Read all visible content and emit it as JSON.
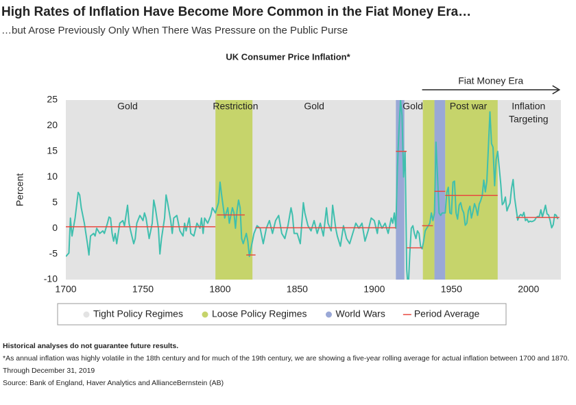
{
  "chart_data": {
    "type": "line",
    "title": "High Rates of Inflation Have Become More Common in the Fiat Money Era…",
    "subtitle": "…but Arose Previously Only When There Was Pressure on the Public Purse",
    "chart_title": "UK Consumer Price Inflation*",
    "y_label": "Percent",
    "xlim": [
      1700,
      2021
    ],
    "ylim": [
      -10,
      25
    ],
    "xticks": [
      1700,
      1750,
      1800,
      1850,
      1900,
      1950,
      2000
    ],
    "yticks": [
      -10,
      -5,
      0,
      5,
      10,
      15,
      20,
      25
    ],
    "background": "#e3e3e3",
    "x": [
      1700,
      1702,
      1703,
      1704,
      1706,
      1708,
      1709,
      1710,
      1712,
      1714,
      1715,
      1716,
      1718,
      1719,
      1720,
      1722,
      1724,
      1725,
      1727,
      1728,
      1729,
      1730,
      1731,
      1732,
      1733,
      1735,
      1737,
      1738,
      1740,
      1741,
      1742,
      1744,
      1745,
      1746,
      1748,
      1750,
      1751,
      1752,
      1754,
      1756,
      1757,
      1758,
      1760,
      1761,
      1762,
      1764,
      1765,
      1766,
      1768,
      1769,
      1770,
      1772,
      1774,
      1776,
      1777,
      1778,
      1780,
      1781,
      1783,
      1785,
      1787,
      1788,
      1789,
      1790,
      1792,
      1794,
      1795,
      1797,
      1799,
      1800,
      1801,
      1803,
      1805,
      1806,
      1808,
      1809,
      1810,
      1811,
      1812,
      1813,
      1814,
      1815,
      1817,
      1818,
      1819,
      1820,
      1822,
      1824,
      1826,
      1828,
      1830,
      1832,
      1834,
      1836,
      1838,
      1840,
      1842,
      1844,
      1846,
      1847,
      1848,
      1850,
      1852,
      1854,
      1855,
      1857,
      1859,
      1861,
      1863,
      1865,
      1867,
      1869,
      1870,
      1872,
      1873,
      1875,
      1876,
      1878,
      1880,
      1882,
      1884,
      1886,
      1888,
      1890,
      1892,
      1894,
      1896,
      1898,
      1900,
      1902,
      1903,
      1905,
      1907,
      1909,
      1911,
      1912,
      1913,
      1914,
      1915,
      1916,
      1917,
      1918,
      1919,
      1920,
      1921,
      1922,
      1923,
      1924,
      1925,
      1926,
      1927,
      1928,
      1929,
      1930,
      1931,
      1932,
      1933,
      1934,
      1935,
      1936,
      1937,
      1938,
      1939,
      1940,
      1941,
      1942,
      1943,
      1944,
      1945,
      1946,
      1947,
      1948,
      1949,
      1950,
      1951,
      1952,
      1953,
      1954,
      1955,
      1956,
      1957,
      1958,
      1959,
      1960,
      1961,
      1962,
      1963,
      1964,
      1965,
      1966,
      1967,
      1968,
      1969,
      1970,
      1971,
      1972,
      1973,
      1974,
      1975,
      1976,
      1977,
      1978,
      1979,
      1980,
      1981,
      1982,
      1983,
      1984,
      1985,
      1986,
      1987,
      1988,
      1989,
      1990,
      1991,
      1992,
      1993,
      1994,
      1995,
      1996,
      1997,
      1998,
      1999,
      2000,
      2001,
      2002,
      2003,
      2004,
      2005,
      2006,
      2007,
      2008,
      2009,
      2010,
      2011,
      2012,
      2013,
      2014,
      2015,
      2016,
      2017,
      2018,
      2019
    ],
    "series": [
      {
        "color": "#3fbfae",
        "values": [
          -5.5,
          -4.8,
          2,
          -1.5,
          2,
          7,
          6.5,
          4,
          1,
          -3,
          -5.2,
          -1.5,
          -1,
          -1.5,
          0,
          -1,
          -0.5,
          -1,
          1,
          2.2,
          2,
          -1,
          -2.5,
          -1,
          -3,
          1,
          1.5,
          0.5,
          4.5,
          1,
          -0.5,
          -3,
          -2,
          1,
          2.5,
          1.5,
          3,
          2,
          -2,
          1,
          5.5,
          4,
          0,
          -5,
          -2,
          2,
          6.5,
          5,
          1.5,
          -1,
          2,
          2.5,
          -0.5,
          -1.5,
          1,
          -0.5,
          2,
          -1,
          -1.5,
          1,
          0,
          2,
          -1,
          2,
          1,
          2.5,
          4,
          3,
          5,
          9,
          6.5,
          2,
          4,
          1,
          4,
          3,
          0,
          3.5,
          5.5,
          4,
          -2,
          -3,
          -1,
          -2.5,
          -5.5,
          -4,
          -1,
          0.5,
          0,
          -3,
          0,
          1.5,
          -1,
          1.5,
          2.5,
          -1,
          -2,
          0.5,
          4,
          2.5,
          -1,
          -1,
          -3,
          5,
          3,
          0.5,
          -0.5,
          1.5,
          -1,
          1,
          -1.5,
          4,
          1,
          -0.5,
          4.5,
          0,
          -1.5,
          -3.5,
          0.5,
          -2,
          -3,
          -1,
          1,
          0,
          1,
          -2.5,
          -0.5,
          2,
          1.5,
          -1,
          1.5,
          0,
          1,
          -1,
          2,
          1,
          3,
          0,
          12,
          19,
          25,
          22,
          10,
          15,
          -8,
          -12,
          -5,
          0,
          0.5,
          -1,
          -2,
          -0.5,
          -1,
          -3.5,
          -4,
          -2.5,
          -0.5,
          0,
          0.5,
          1,
          3,
          1.5,
          3,
          16.8,
          10,
          3,
          2.5,
          3,
          3,
          3,
          7,
          8,
          3,
          2.8,
          9,
          9.2,
          3,
          1.8,
          4.5,
          5,
          3.7,
          3,
          0.6,
          1,
          3.4,
          4.3,
          2,
          3.3,
          4.8,
          3.9,
          2.5,
          4.7,
          5.4,
          6.4,
          9.4,
          7.1,
          9.2,
          16,
          22.7,
          16.5,
          15.8,
          8.3,
          13.4,
          15,
          11.9,
          8.6,
          4.6,
          5,
          6.1,
          3.4,
          4.2,
          4.9,
          7.8,
          9.5,
          5.9,
          3.7,
          1.6,
          2.4,
          2.7,
          2.4,
          3.1,
          1.5,
          1.8,
          1.2,
          1.4,
          1.3,
          1.4,
          1.6,
          2.1,
          2.3,
          2.3,
          3.6,
          2.2,
          3.3,
          4.5,
          2.8,
          2.6,
          1.5,
          0.1,
          0.7,
          2.7,
          2.5,
          1.8
        ]
      }
    ],
    "bands": [
      {
        "from": 1797,
        "to": 1821,
        "color": "#c6d46b"
      },
      {
        "from": 1914,
        "to": 1919.5,
        "color": "#9aa8d6"
      },
      {
        "from": 1931.5,
        "to": 1939,
        "color": "#c6d46b"
      },
      {
        "from": 1939,
        "to": 1946,
        "color": "#9aa8d6"
      },
      {
        "from": 1946,
        "to": 1980,
        "color": "#c6d46b"
      }
    ],
    "period_average_color": "#e8483f",
    "period_averages": [
      {
        "from": 1700,
        "to": 1797,
        "value": 0.3
      },
      {
        "from": 1798,
        "to": 1816,
        "value": 2.6
      },
      {
        "from": 1817,
        "to": 1823,
        "value": -5.2
      },
      {
        "from": 1823,
        "to": 1914,
        "value": 0.1
      },
      {
        "from": 1914,
        "to": 1921,
        "value": 15
      },
      {
        "from": 1921,
        "to": 1931,
        "value": -3.8
      },
      {
        "from": 1931,
        "to": 1938,
        "value": 0.5
      },
      {
        "from": 1939,
        "to": 1946,
        "value": 7.2
      },
      {
        "from": 1946,
        "to": 1980,
        "value": 6.4
      },
      {
        "from": 1992,
        "to": 2020,
        "value": 2.1
      }
    ],
    "regime_labels": [
      {
        "x": 1740,
        "lines": [
          "Gold"
        ]
      },
      {
        "x": 1810,
        "lines": [
          "Restriction"
        ]
      },
      {
        "x": 1861,
        "lines": [
          "Gold"
        ]
      },
      {
        "x": 1925,
        "lines": [
          "Gold"
        ]
      },
      {
        "x": 1961,
        "lines": [
          "Post war"
        ]
      },
      {
        "x": 2000,
        "lines": [
          "Inflation",
          "Targeting"
        ]
      }
    ],
    "era_arrow": {
      "text": "Fiat Money Era",
      "from": 1931,
      "to": 2020
    },
    "legend": [
      {
        "name": "Tight Policy Regimes",
        "color": "#e3e3e3",
        "marker": "dot"
      },
      {
        "name": "Loose Policy Regimes",
        "color": "#c6d46b",
        "marker": "dot"
      },
      {
        "name": "World Wars",
        "color": "#9aa8d6",
        "marker": "dot"
      },
      {
        "name": "Period Average",
        "color": "#e8483f",
        "marker": "line"
      }
    ]
  },
  "notes": {
    "disclaimer": "Historical analyses do not guarantee future results.",
    "lines": [
      "*As annual inflation was highly volatile in the 18th century and for much of the 19th century, we are showing a five-year rolling average for actual inflation between 1700 and 1870.",
      "Through December 31, 2019",
      "Source: Bank of England, Haver Analytics and AllianceBernstein (AB)"
    ]
  }
}
